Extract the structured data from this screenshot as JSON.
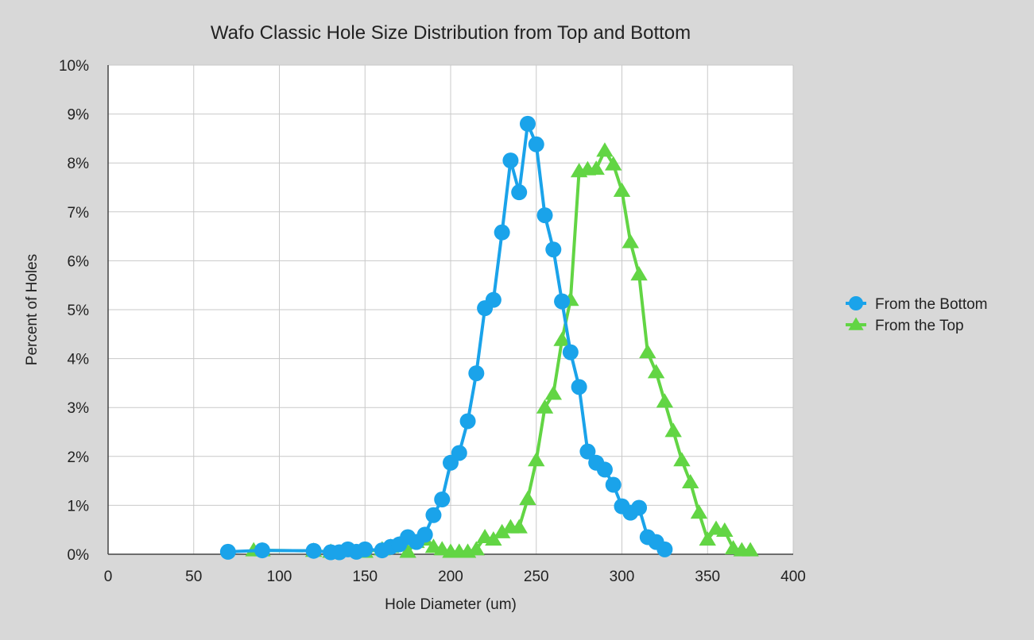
{
  "chart_data": {
    "type": "scatter",
    "title": "Wafo Classic Hole Size Distribution from Top and Bottom",
    "xlabel": "Hole Diameter (um)",
    "ylabel": "Percent of Holes",
    "xlim": [
      0,
      400
    ],
    "ylim": [
      0,
      10
    ],
    "x_ticks": [
      0,
      50,
      100,
      150,
      200,
      250,
      300,
      350,
      400
    ],
    "y_ticks": [
      0,
      1,
      2,
      3,
      4,
      5,
      6,
      7,
      8,
      9,
      10
    ],
    "y_tick_suffix": "%",
    "grid": true,
    "legend_position": "right",
    "series": [
      {
        "name": "From the Bottom",
        "marker": "circle",
        "color": "#1aa3ea",
        "x": [
          70,
          90,
          120,
          130,
          135,
          140,
          145,
          150,
          160,
          165,
          170,
          175,
          180,
          185,
          190,
          195,
          200,
          205,
          210,
          215,
          220,
          225,
          230,
          235,
          240,
          245,
          250,
          255,
          260,
          265,
          270,
          275,
          280,
          285,
          290,
          295,
          300,
          305,
          310,
          315,
          320,
          325
        ],
        "y": [
          0.05,
          0.08,
          0.07,
          0.04,
          0.04,
          0.1,
          0.05,
          0.1,
          0.08,
          0.15,
          0.2,
          0.35,
          0.25,
          0.4,
          0.8,
          1.12,
          1.87,
          2.07,
          2.72,
          3.7,
          5.03,
          5.2,
          6.58,
          8.05,
          7.4,
          8.8,
          8.38,
          6.93,
          6.23,
          5.17,
          4.13,
          3.42,
          2.1,
          1.87,
          1.73,
          1.42,
          0.98,
          0.85,
          0.95,
          0.35,
          0.25,
          0.1
        ]
      },
      {
        "name": "From the Top",
        "marker": "triangle",
        "color": "#62d544",
        "x": [
          85,
          90,
          120,
          130,
          150,
          160,
          165,
          170,
          175,
          180,
          185,
          190,
          195,
          200,
          205,
          210,
          215,
          220,
          225,
          230,
          235,
          240,
          245,
          250,
          255,
          260,
          265,
          270,
          275,
          280,
          285,
          290,
          295,
          300,
          305,
          310,
          315,
          320,
          325,
          330,
          335,
          340,
          345,
          350,
          355,
          360,
          365,
          370,
          375
        ],
        "y": [
          0.08,
          0.08,
          0.07,
          0.05,
          0.05,
          0.1,
          0.15,
          0.2,
          0.05,
          0.25,
          0.3,
          0.15,
          0.1,
          0.05,
          0.05,
          0.05,
          0.1,
          0.35,
          0.3,
          0.45,
          0.55,
          0.55,
          1.13,
          1.92,
          3.0,
          3.28,
          4.38,
          5.2,
          7.83,
          7.87,
          7.88,
          8.25,
          7.97,
          7.43,
          6.38,
          5.72,
          4.13,
          3.72,
          3.12,
          2.52,
          1.92,
          1.47,
          0.85,
          0.3,
          0.52,
          0.48,
          0.12,
          0.08,
          0.08
        ]
      }
    ]
  }
}
